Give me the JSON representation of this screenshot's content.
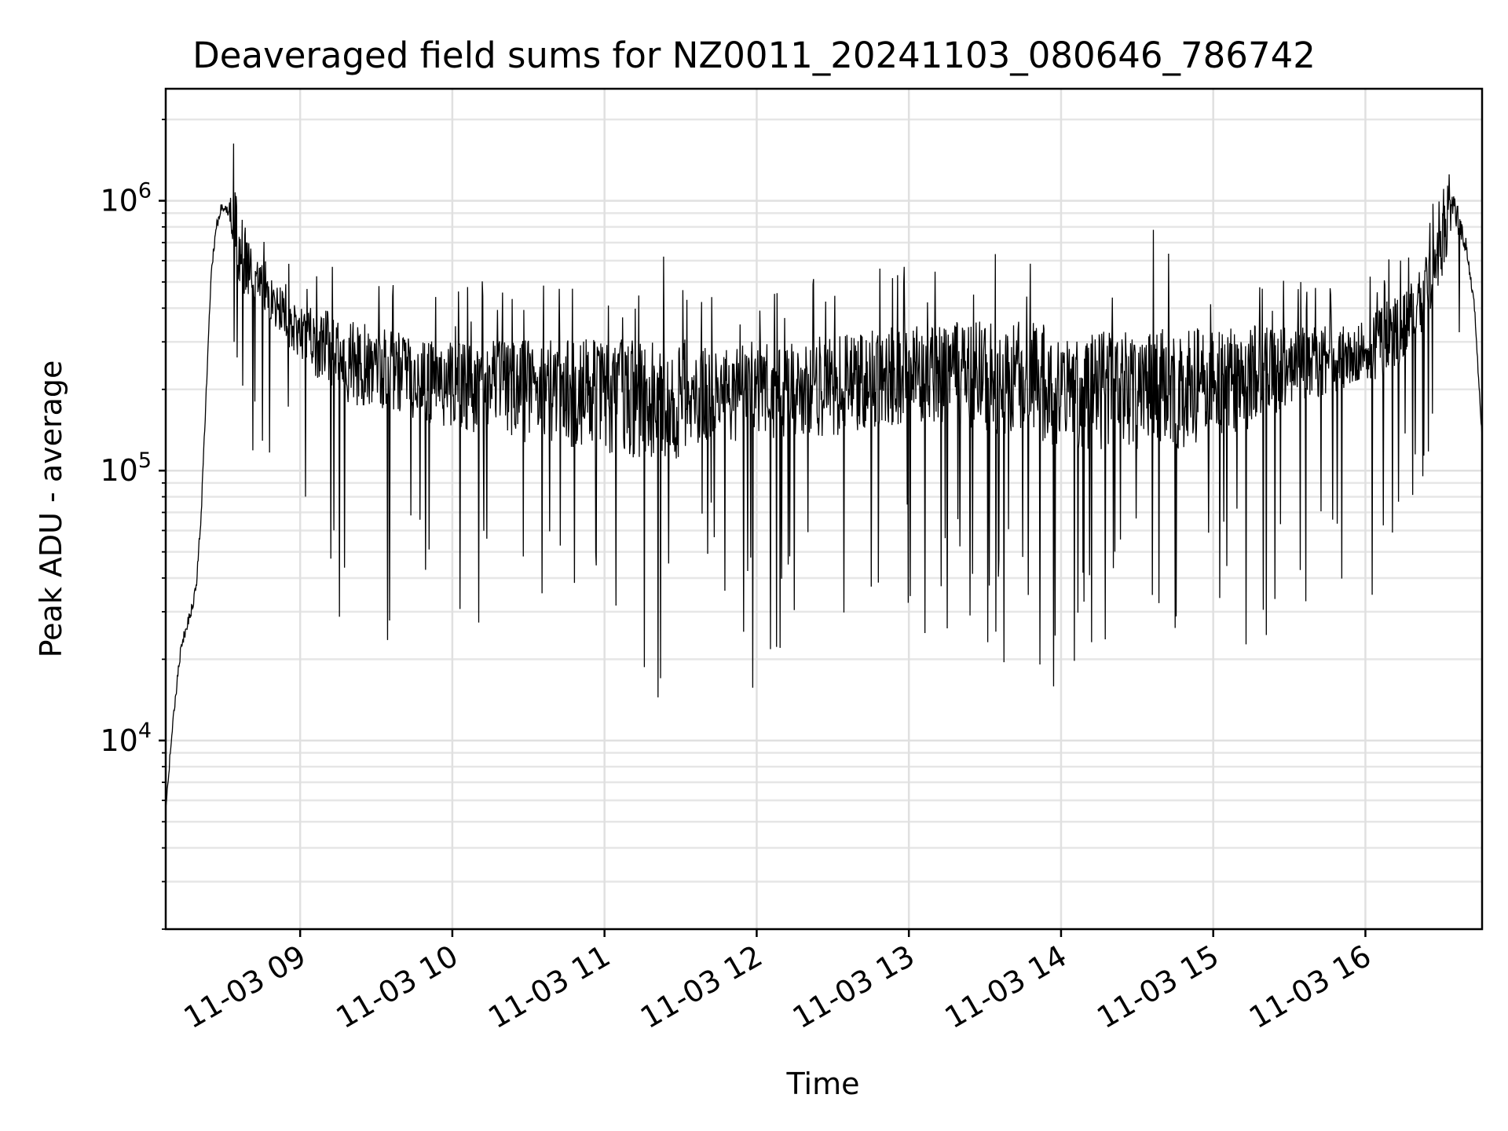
{
  "chart_data": {
    "type": "line",
    "title": "Deaveraged field sums for NZ0011_20241103_080646_786742",
    "xlabel": "Time",
    "ylabel": "Peak ADU - average",
    "yscale": "log",
    "ylim": [
      2000,
      2600000
    ],
    "xlim": [
      "2024-11-03 08:07",
      "2024-11-03 16:46"
    ],
    "grid": true,
    "x_tick_labels": [
      {
        "time": "2024-11-03 09:00",
        "label": "11-03 09"
      },
      {
        "time": "2024-11-03 10:00",
        "label": "11-03 10"
      },
      {
        "time": "2024-11-03 11:00",
        "label": "11-03 11"
      },
      {
        "time": "2024-11-03 12:00",
        "label": "11-03 12"
      },
      {
        "time": "2024-11-03 13:00",
        "label": "11-03 13"
      },
      {
        "time": "2024-11-03 14:00",
        "label": "11-03 14"
      },
      {
        "time": "2024-11-03 15:00",
        "label": "11-03 15"
      },
      {
        "time": "2024-11-03 16:00",
        "label": "11-03 16"
      }
    ],
    "y_tick_labels": [
      {
        "value": 10000,
        "base": "10",
        "exp": "4"
      },
      {
        "value": 100000,
        "base": "10",
        "exp": "5"
      },
      {
        "value": 1000000,
        "base": "10",
        "exp": "6"
      }
    ],
    "series_color": "#000000",
    "series": [
      {
        "x": [
          "2024-11-03 08:07",
          "2024-11-03 08:09",
          "2024-11-03 08:11",
          "2024-11-03 08:13",
          "2024-11-03 08:15",
          "2024-11-03 08:17",
          "2024-11-03 08:19",
          "2024-11-03 08:21",
          "2024-11-03 08:23",
          "2024-11-03 08:25",
          "2024-11-03 08:27",
          "2024-11-03 08:29",
          "2024-11-03 08:32",
          "2024-11-03 08:36",
          "2024-11-03 08:40",
          "2024-11-03 08:45",
          "2024-11-03 08:50",
          "2024-11-03 08:55",
          "2024-11-03 09:00",
          "2024-11-03 09:10",
          "2024-11-03 09:20",
          "2024-11-03 09:30",
          "2024-11-03 09:40",
          "2024-11-03 09:50",
          "2024-11-03 10:00",
          "2024-11-03 10:15",
          "2024-11-03 10:30",
          "2024-11-03 10:45",
          "2024-11-03 11:00",
          "2024-11-03 11:15",
          "2024-11-03 11:30",
          "2024-11-03 11:45",
          "2024-11-03 12:00",
          "2024-11-03 12:15",
          "2024-11-03 12:30",
          "2024-11-03 12:45",
          "2024-11-03 13:00",
          "2024-11-03 13:15",
          "2024-11-03 13:30",
          "2024-11-03 13:45",
          "2024-11-03 14:00",
          "2024-11-03 14:15",
          "2024-11-03 14:30",
          "2024-11-03 14:45",
          "2024-11-03 15:00",
          "2024-11-03 15:15",
          "2024-11-03 15:30",
          "2024-11-03 15:45",
          "2024-11-03 16:00",
          "2024-11-03 16:10",
          "2024-11-03 16:20",
          "2024-11-03 16:25",
          "2024-11-03 16:30",
          "2024-11-03 16:35",
          "2024-11-03 16:40",
          "2024-11-03 16:43",
          "2024-11-03 16:46"
        ],
        "median": [
          5500,
          9500,
          15000,
          22000,
          26000,
          30000,
          37000,
          70000,
          200000,
          550000,
          800000,
          950000,
          900000,
          700000,
          550000,
          480000,
          420000,
          360000,
          320000,
          290000,
          260000,
          240000,
          225000,
          215000,
          210000,
          205000,
          200000,
          195000,
          190000,
          185000,
          188000,
          195000,
          200000,
          205000,
          210000,
          220000,
          230000,
          235000,
          230000,
          225000,
          210000,
          200000,
          200000,
          205000,
          215000,
          230000,
          245000,
          260000,
          280000,
          320000,
          400000,
          520000,
          700000,
          950000,
          650000,
          400000,
          130000
        ],
        "spike_max": [
          6000,
          11000,
          16000,
          24000,
          28000,
          33000,
          40000,
          90000,
          300000,
          1000000,
          1500000,
          1900000,
          1900000,
          1700000,
          900000,
          750000,
          650000,
          600000,
          550000,
          600000,
          600000,
          550000,
          520000,
          500000,
          480000,
          510000,
          530000,
          560000,
          570000,
          700000,
          600000,
          480000,
          520000,
          520000,
          550000,
          560000,
          600000,
          620000,
          700000,
          650000,
          750000,
          700000,
          800000,
          780000,
          600000,
          650000,
          520000,
          500000,
          500000,
          680000,
          800000,
          1000000,
          1400000,
          1300000,
          800000,
          600000,
          150000
        ],
        "spike_min": [
          5000,
          9000,
          14000,
          20000,
          24000,
          28000,
          34000,
          60000,
          180000,
          450000,
          350000,
          300000,
          280000,
          150000,
          120000,
          110000,
          100000,
          90000,
          80000,
          30000,
          22000,
          18000,
          25000,
          30000,
          20000,
          25000,
          28000,
          16000,
          42000,
          11000,
          17000,
          35000,
          12500,
          28000,
          23000,
          29000,
          25000,
          18000,
          21000,
          18000,
          15000,
          17000,
          28000,
          25000,
          35000,
          20000,
          23000,
          22000,
          20000,
          50000,
          60000,
          70000,
          100000,
          200000,
          180000,
          120000,
          90000
        ]
      }
    ]
  }
}
